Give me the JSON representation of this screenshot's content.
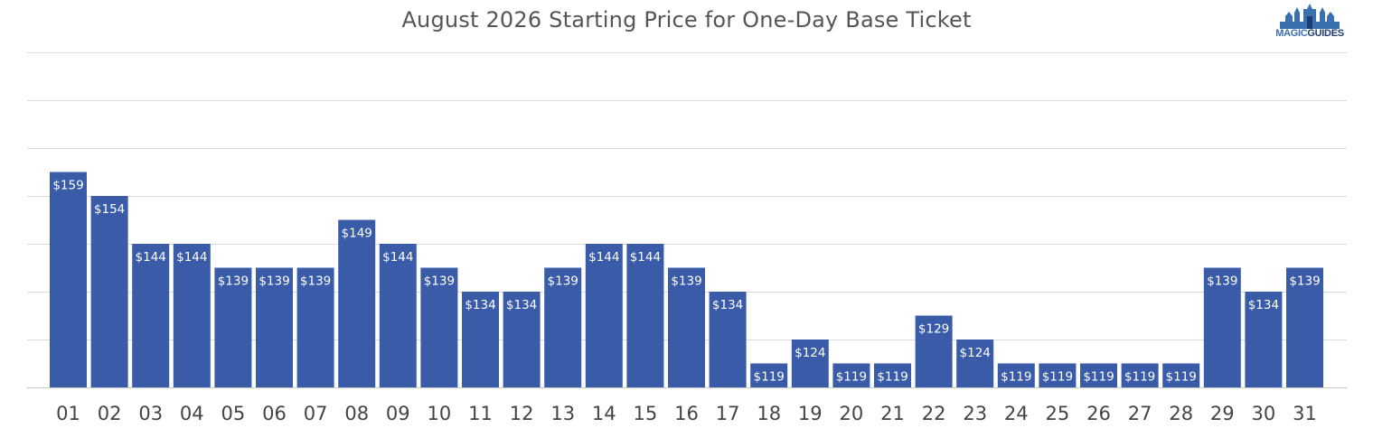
{
  "title": "August 2026 Starting Price for One-Day Base Ticket",
  "logo": {
    "text_light": "MAGIC",
    "text_dark": "GUIDES",
    "icon": "castle-skyline-icon"
  },
  "colors": {
    "bar": "#3a5ba8",
    "grid": "#dcdcdc",
    "baseline": "#c8c8c8"
  },
  "chart_data": {
    "type": "bar",
    "title": "August 2026 Starting Price for One-Day Base Ticket",
    "xlabel": "",
    "ylabel": "",
    "categories": [
      "01",
      "02",
      "03",
      "04",
      "05",
      "06",
      "07",
      "08",
      "09",
      "10",
      "11",
      "12",
      "13",
      "14",
      "15",
      "16",
      "17",
      "18",
      "19",
      "20",
      "21",
      "22",
      "23",
      "24",
      "25",
      "26",
      "27",
      "28",
      "29",
      "30",
      "31"
    ],
    "values": [
      159,
      154,
      144,
      144,
      139,
      139,
      139,
      149,
      144,
      139,
      134,
      134,
      139,
      144,
      144,
      139,
      134,
      119,
      124,
      119,
      119,
      129,
      124,
      119,
      119,
      119,
      119,
      119,
      139,
      134,
      139
    ],
    "value_labels": [
      "$159",
      "$154",
      "$144",
      "$144",
      "$139",
      "$139",
      "$139",
      "$149",
      "$144",
      "$139",
      "$134",
      "$134",
      "$139",
      "$144",
      "$144",
      "$139",
      "$134",
      "$119",
      "$124",
      "$119",
      "$119",
      "$129",
      "$124",
      "$119",
      "$119",
      "$119",
      "$119",
      "$119",
      "$139",
      "$134",
      "$139"
    ],
    "ylim": [
      114,
      184
    ],
    "grid": true,
    "legend": "none"
  }
}
